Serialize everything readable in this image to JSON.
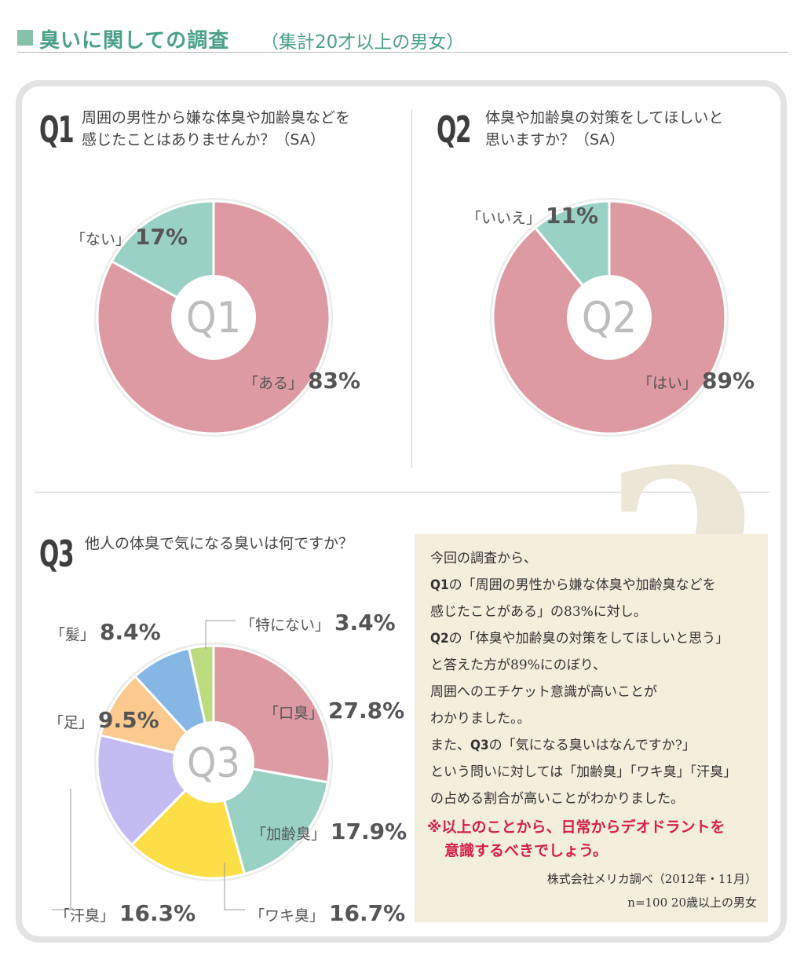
{
  "header": {
    "title": "臭いに関しての調査",
    "subtitle": "（集計20才以上の男女）"
  },
  "q1": {
    "number": "Q1",
    "question_line1": "周囲の男性から嫌な体臭や加齢臭などを",
    "question_line2": "感じたことはありませんか？（SA）"
  },
  "q2": {
    "number": "Q2",
    "question_line1": "体臭や加齢臭の対策をしてほしいと",
    "question_line2": "思いますか？（SA）"
  },
  "q3": {
    "number": "Q3",
    "question": "他人の体臭で気になる臭いは何ですか？"
  },
  "chart_data": [
    {
      "type": "pie",
      "center_label": "Q1",
      "categories": [
        "「ある」",
        "「ない」"
      ],
      "values": [
        83,
        17
      ],
      "value_labels": [
        "83",
        "17"
      ],
      "unit": "%",
      "colors": [
        "#de9aa2",
        "#99d2c5"
      ]
    },
    {
      "type": "pie",
      "center_label": "Q2",
      "categories": [
        "「はい」",
        "「いいえ」"
      ],
      "values": [
        89,
        11
      ],
      "value_labels": [
        "89",
        "11"
      ],
      "unit": "%",
      "colors": [
        "#de9aa2",
        "#99d2c5"
      ]
    },
    {
      "type": "pie",
      "center_label": "Q3",
      "categories": [
        "「口臭」",
        "「加齢臭」",
        "「ワキ臭」",
        "「汗臭」",
        "「足」",
        "「髪」",
        "「特にない」"
      ],
      "values": [
        27.8,
        17.9,
        16.7,
        16.3,
        9.5,
        8.4,
        3.4
      ],
      "value_labels": [
        "27.8",
        "17.9",
        "16.7",
        "16.3",
        "9.5",
        "8.4",
        "3.4"
      ],
      "unit": "%",
      "colors": [
        "#de9aa2",
        "#99d2c5",
        "#fcdf47",
        "#c3bcf3",
        "#fcc98e",
        "#86b7e4",
        "#bcda7e"
      ]
    }
  ],
  "note": {
    "line1": "今回の調査から、",
    "line2_q": "Q1",
    "line2": "の「周囲の男性から嫌な体臭や加齢臭などを",
    "line3": "感じたことがある」の83%に対し。",
    "line4_q": "Q2",
    "line4": "の「体臭や加齢臭の対策をしてほしいと思う」",
    "line5": "と答えた方が89%にのぼり、",
    "line6": "周囲へのエチケット意識が高いことが",
    "line7": "わかりました。。",
    "line8_pre": "また、",
    "line8_q": "Q3",
    "line8": "の「気になる臭いはなんですか?」",
    "line9": "という問いに対しては「加齢臭」「ワキ臭」「汗臭」",
    "line10": "の占める割合が高いことがわかりました。",
    "emphasis_line1": "※以上のことから、日常からデオドラントを",
    "emphasis_line2": "意識するべきでしょう。",
    "source_line1": "株式会社メリカ調べ（2012年・11月）",
    "source_line2": "n=100 20歳以上の男女"
  },
  "decor": {
    "question_mark": "?"
  }
}
